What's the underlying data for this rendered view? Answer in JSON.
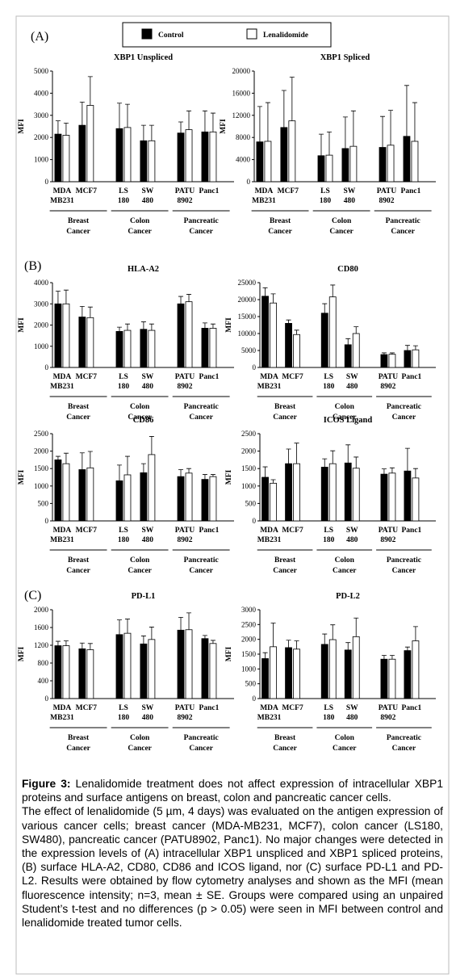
{
  "panels": [
    "(A)",
    "(B)",
    "(C)"
  ],
  "caption": {
    "label": "Figure 3:",
    "title": "Lenalidomide treatment does not affect expression of intracellular XBP1 proteins and surface antigens on breast, colon and pancreatic cancer cells.",
    "text": "The effect of lenalidomide (5 µm, 4 days) was evaluated on the antigen expression of various cancer cells; breast cancer (MDA-MB231, MCF7), colon cancer (LS180, SW480), pancreatic cancer (PATU8902, Panc1). No major changes were detected in the expression levels of (A) intracellular XBP1 unspliced and XBP1 spliced proteins, (B) surface HLA-A2, CD80, CD86 and ICOS ligand, nor (C) surface PD-L1 and PD-L2. Results were obtained by flow cytometry analyses and shown as the MFI (mean fluorescence intensity; n=3, mean ± SE. Groups were compared using an unpaired Student’s t-test and no differences (p > 0.05) were seen in MFI between control and lenalidomide treated tumor cells."
  },
  "chart_data": [
    {
      "type": "bar",
      "title": "XBP1 Unspliced",
      "ylabel": "MFI",
      "categories": [
        "MDA MB231",
        "MCF7",
        "LS 180",
        "SW 480",
        "PATU 8902",
        "Panc1"
      ],
      "groups": [
        "Breast Cancer",
        "Colon Cancer",
        "Pancreatic Cancer"
      ],
      "ylim": [
        0,
        5000
      ],
      "yticks": [
        0,
        1000,
        2000,
        3000,
        4000,
        5000
      ],
      "series": [
        {
          "name": "Control",
          "color": "#000000",
          "values": [
            2150,
            2550,
            2400,
            1850,
            2200,
            2250
          ],
          "errors": [
            600,
            1050,
            1150,
            700,
            500,
            950
          ]
        },
        {
          "name": "Lenalidomide",
          "color": "#ffffff",
          "values": [
            2100,
            3450,
            2450,
            1850,
            2350,
            2250
          ],
          "errors": [
            550,
            1300,
            1050,
            700,
            850,
            850
          ]
        }
      ]
    },
    {
      "type": "bar",
      "title": "XBP1 Spliced",
      "ylabel": "MFI",
      "categories": [
        "MDA MB231",
        "MCF7",
        "LS 180",
        "SW 480",
        "PATU 8902",
        "Panc1"
      ],
      "groups": [
        "Breast Cancer",
        "Colon Cancer",
        "Pancreatic Cancer"
      ],
      "ylim": [
        0,
        20000
      ],
      "yticks": [
        0,
        4000,
        8000,
        12000,
        16000,
        20000
      ],
      "series": [
        {
          "name": "Control",
          "color": "#000000",
          "values": [
            7200,
            9800,
            4700,
            6000,
            6200,
            8200
          ],
          "errors": [
            6400,
            6700,
            3900,
            5700,
            5600,
            9200
          ]
        },
        {
          "name": "Lenalidomide",
          "color": "#ffffff",
          "values": [
            7300,
            11000,
            4800,
            6400,
            6600,
            7300
          ],
          "errors": [
            7000,
            7900,
            4200,
            6400,
            6300,
            7000
          ]
        }
      ]
    },
    {
      "type": "bar",
      "title": "HLA-A2",
      "ylabel": "MFI",
      "categories": [
        "MDA MB231",
        "MCF7",
        "LS 180",
        "SW 480",
        "PATU 8902",
        "Panc1"
      ],
      "groups": [
        "Breast Cancer",
        "Colon Cancer",
        "Pancreatic Cancer"
      ],
      "ylim": [
        0,
        4000
      ],
      "yticks": [
        0,
        1000,
        2000,
        3000,
        4000
      ],
      "series": [
        {
          "name": "Control",
          "color": "#000000",
          "values": [
            3000,
            2380,
            1700,
            1800,
            3000,
            1850
          ],
          "errors": [
            600,
            500,
            200,
            350,
            350,
            250
          ]
        },
        {
          "name": "Lenalidomide",
          "color": "#ffffff",
          "values": [
            3000,
            2350,
            1750,
            1750,
            3100,
            1850
          ],
          "errors": [
            650,
            500,
            300,
            300,
            350,
            200
          ]
        }
      ]
    },
    {
      "type": "bar",
      "title": "CD80",
      "ylabel": "MFI",
      "categories": [
        "MDA MB231",
        "MCF7",
        "LS 180",
        "SW 480",
        "PATU 8902",
        "Panc1"
      ],
      "groups": [
        "Breast Cancer",
        "Colon Cancer",
        "Pancreatic Cancer"
      ],
      "ylim": [
        0,
        25000
      ],
      "yticks": [
        0,
        5000,
        10000,
        15000,
        20000,
        25000
      ],
      "series": [
        {
          "name": "Control",
          "color": "#000000",
          "values": [
            21000,
            13000,
            16000,
            6700,
            3800,
            5000
          ],
          "errors": [
            2500,
            1000,
            2800,
            1800,
            500,
            1500
          ]
        },
        {
          "name": "Lenalidomide",
          "color": "#ffffff",
          "values": [
            19000,
            9700,
            20800,
            10000,
            3900,
            5200
          ],
          "errors": [
            2700,
            1300,
            3500,
            2000,
            400,
            1200
          ]
        }
      ]
    },
    {
      "type": "bar",
      "title": "CD86",
      "ylabel": "MFI",
      "categories": [
        "MDA MB231",
        "MCF7",
        "LS 180",
        "SW 480",
        "PATU 8902",
        "Panc1"
      ],
      "groups": [
        "Breast Cancer",
        "Colon Cancer",
        "Pancreatic Cancer"
      ],
      "ylim": [
        0,
        2500
      ],
      "yticks": [
        0,
        500,
        1000,
        1500,
        2000,
        2500
      ],
      "series": [
        {
          "name": "Control",
          "color": "#000000",
          "values": [
            1750,
            1470,
            1150,
            1380,
            1270,
            1190
          ],
          "errors": [
            100,
            480,
            450,
            260,
            200,
            140
          ]
        },
        {
          "name": "Lenalidomide",
          "color": "#ffffff",
          "values": [
            1640,
            1520,
            1320,
            1900,
            1370,
            1270
          ],
          "errors": [
            300,
            470,
            530,
            520,
            130,
            60
          ]
        }
      ]
    },
    {
      "type": "bar",
      "title": "ICOS Ligand",
      "ylabel": "MFI",
      "categories": [
        "MDA MB231",
        "MCF7",
        "LS 180",
        "SW 480",
        "PATU 8902",
        "Panc1"
      ],
      "groups": [
        "Breast Cancer",
        "Colon Cancer",
        "Pancreatic Cancer"
      ],
      "ylim": [
        0,
        2500
      ],
      "yticks": [
        0,
        500,
        1000,
        1500,
        2000,
        2500
      ],
      "series": [
        {
          "name": "Control",
          "color": "#000000",
          "values": [
            1250,
            1640,
            1540,
            1660,
            1340,
            1430
          ],
          "errors": [
            300,
            420,
            240,
            520,
            150,
            650
          ]
        },
        {
          "name": "Lenalidomide",
          "color": "#ffffff",
          "values": [
            1080,
            1640,
            1640,
            1510,
            1370,
            1230
          ],
          "errors": [
            100,
            590,
            370,
            320,
            150,
            270
          ]
        }
      ]
    },
    {
      "type": "bar",
      "title": "PD-L1",
      "ylabel": "MFI",
      "categories": [
        "MDA MB231",
        "MCF7",
        "LS 180",
        "SW 480",
        "PATU 8902",
        "Panc1"
      ],
      "groups": [
        "Breast Cancer",
        "Colon Cancer",
        "Pancreatic Cancer"
      ],
      "ylim": [
        0,
        2000
      ],
      "yticks": [
        0,
        400,
        800,
        1200,
        1600,
        2000
      ],
      "series": [
        {
          "name": "Control",
          "color": "#000000",
          "values": [
            1190,
            1120,
            1440,
            1230,
            1540,
            1350
          ],
          "errors": [
            100,
            130,
            330,
            180,
            290,
            70
          ]
        },
        {
          "name": "Lenalidomide",
          "color": "#ffffff",
          "values": [
            1190,
            1100,
            1470,
            1330,
            1550,
            1240
          ],
          "errors": [
            110,
            140,
            320,
            280,
            380,
            70
          ]
        }
      ]
    },
    {
      "type": "bar",
      "title": "PD-L2",
      "ylabel": "MFI",
      "categories": [
        "MDA MB231",
        "MCF7",
        "LS 180",
        "SW 480",
        "PATU 8902",
        "Panc1"
      ],
      "groups": [
        "Breast Cancer",
        "Colon Cancer",
        "Pancreatic Cancer"
      ],
      "ylim": [
        0,
        3000
      ],
      "yticks": [
        0,
        500,
        1000,
        1500,
        2000,
        2500,
        3000
      ],
      "series": [
        {
          "name": "Control",
          "color": "#000000",
          "values": [
            1350,
            1720,
            1830,
            1640,
            1330,
            1620
          ],
          "errors": [
            200,
            250,
            350,
            250,
            130,
            120
          ]
        },
        {
          "name": "Lenalidomide",
          "color": "#ffffff",
          "values": [
            1750,
            1670,
            1990,
            2090,
            1330,
            1950
          ],
          "errors": [
            800,
            280,
            500,
            630,
            130,
            480
          ]
        }
      ]
    }
  ]
}
